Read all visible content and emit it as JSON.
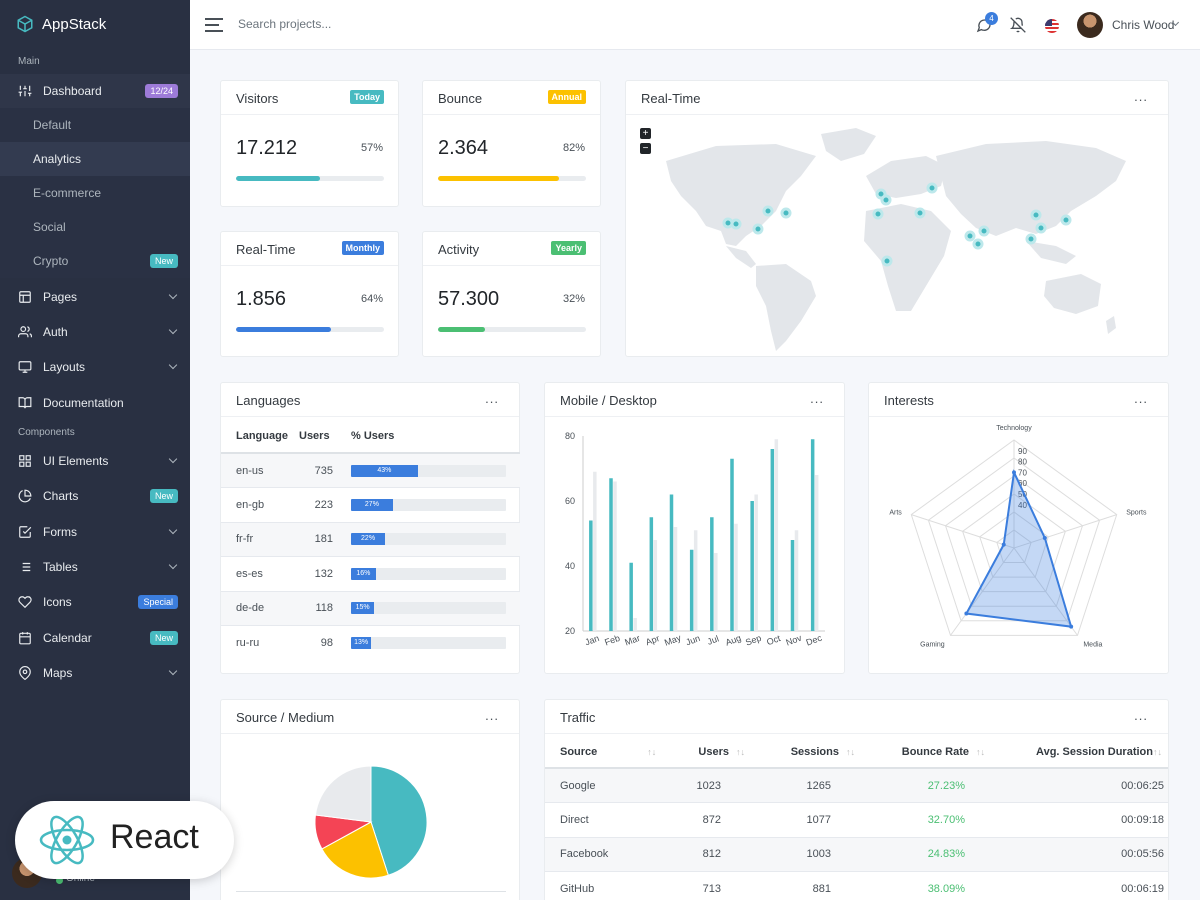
{
  "brand": {
    "name": "AppStack"
  },
  "colors": {
    "primary": "#3b7ddd",
    "info": "#47bac1",
    "warning": "#fcc100",
    "success": "#4bbf73",
    "danger": "#f44455",
    "purple": "#9d7bd8",
    "sidebar": "#293042"
  },
  "sidebar": {
    "header_main": "Main",
    "header_components": "Components",
    "dashboard": {
      "label": "Dashboard",
      "badge": "12/24",
      "icon": "sliders-icon"
    },
    "sub_items": [
      {
        "label": "Default"
      },
      {
        "label": "Analytics"
      },
      {
        "label": "E-commerce"
      },
      {
        "label": "Social"
      },
      {
        "label": "Crypto",
        "badge": "New"
      }
    ],
    "items_main": [
      {
        "label": "Pages",
        "icon": "layout-icon"
      },
      {
        "label": "Auth",
        "icon": "users-icon"
      },
      {
        "label": "Layouts",
        "icon": "monitor-icon"
      },
      {
        "label": "Documentation",
        "icon": "book-icon"
      }
    ],
    "items_components": [
      {
        "label": "UI Elements",
        "icon": "grid-icon"
      },
      {
        "label": "Charts",
        "icon": "pie-chart-icon",
        "badge": "New"
      },
      {
        "label": "Forms",
        "icon": "check-square-icon"
      },
      {
        "label": "Tables",
        "icon": "list-icon"
      },
      {
        "label": "Icons",
        "icon": "heart-icon",
        "badge": "Special"
      },
      {
        "label": "Calendar",
        "icon": "calendar-icon",
        "badge": "New"
      },
      {
        "label": "Maps",
        "icon": "map-pin-icon"
      }
    ],
    "footer": {
      "status": "Online"
    }
  },
  "topbar": {
    "search_placeholder": "Search projects...",
    "notification_count": "4",
    "user_name": "Chris Wood"
  },
  "stats": [
    {
      "title": "Visitors",
      "badge": "Today",
      "value": "17.212",
      "percent": "57%",
      "progress": 57
    },
    {
      "title": "Bounce",
      "badge": "Annual",
      "value": "2.364",
      "percent": "82%",
      "progress": 82
    },
    {
      "title": "Real-Time",
      "badge": "Monthly",
      "value": "1.856",
      "percent": "64%",
      "progress": 64
    },
    {
      "title": "Activity",
      "badge": "Yearly",
      "value": "57.300",
      "percent": "32%",
      "progress": 32
    }
  ],
  "realtime_map": {
    "title": "Real-Time",
    "more": "...",
    "zoom_in": "+",
    "zoom_out": "−"
  },
  "languages": {
    "title": "Languages",
    "more": "...",
    "headers": [
      "Language",
      "Users",
      "% Users"
    ],
    "rows": [
      {
        "lang": "en-us",
        "users": "735",
        "pct": "43%",
        "value": 43
      },
      {
        "lang": "en-gb",
        "users": "223",
        "pct": "27%",
        "value": 27
      },
      {
        "lang": "fr-fr",
        "users": "181",
        "pct": "22%",
        "value": 22
      },
      {
        "lang": "es-es",
        "users": "132",
        "pct": "16%",
        "value": 16
      },
      {
        "lang": "de-de",
        "users": "118",
        "pct": "15%",
        "value": 15
      },
      {
        "lang": "ru-ru",
        "users": "98",
        "pct": "13%",
        "value": 13
      }
    ]
  },
  "mobile_desktop": {
    "title": "Mobile / Desktop",
    "more": "..."
  },
  "interests": {
    "title": "Interests",
    "more": "..."
  },
  "source_medium": {
    "title": "Source / Medium",
    "more": "..."
  },
  "traffic": {
    "title": "Traffic",
    "more": "...",
    "headers": [
      "Source",
      "Users",
      "Sessions",
      "Bounce Rate",
      "Avg. Session Duration"
    ],
    "sort_glyph": "↑↓",
    "rows": [
      {
        "source": "Google",
        "users": "1023",
        "sessions": "1265",
        "bounce": "27.23%",
        "duration": "00:06:25"
      },
      {
        "source": "Direct",
        "users": "872",
        "sessions": "1077",
        "bounce": "32.70%",
        "duration": "00:09:18"
      },
      {
        "source": "Facebook",
        "users": "812",
        "sessions": "1003",
        "bounce": "24.83%",
        "duration": "00:05:56"
      },
      {
        "source": "GitHub",
        "users": "713",
        "sessions": "881",
        "bounce": "38.09%",
        "duration": "00:06:19"
      }
    ]
  },
  "react_badge": {
    "label": "React"
  },
  "chart_data": [
    {
      "type": "bar",
      "categories": [
        "Jan",
        "Feb",
        "Mar",
        "Apr",
        "May",
        "Jun",
        "Jul",
        "Aug",
        "Sep",
        "Oct",
        "Nov",
        "Dec"
      ],
      "series": [
        {
          "values": [
            54,
            67,
            41,
            55,
            62,
            45,
            55,
            73,
            60,
            76,
            48,
            79
          ],
          "color": "#47bac1"
        },
        {
          "values": [
            69,
            66,
            24,
            48,
            52,
            51,
            44,
            53,
            62,
            79,
            51,
            68
          ],
          "color": "#e8eaed"
        }
      ],
      "ylim": [
        20,
        80
      ],
      "yticks": [
        20,
        40,
        60,
        80
      ]
    },
    {
      "type": "radar",
      "axes": [
        "Technology",
        "Sports",
        "Media",
        "Gaming",
        "Arts"
      ],
      "values": [
        70,
        30,
        90,
        75,
        10
      ],
      "range": [
        0,
        100
      ],
      "tick_labels": [
        "40",
        "50",
        "60",
        "70",
        "80",
        "90"
      ],
      "tick_values": [
        40,
        50,
        60,
        70,
        80,
        90
      ],
      "color": "#3b7ddd"
    },
    {
      "type": "pie",
      "slices": [
        {
          "value": 45,
          "color": "#47bac1"
        },
        {
          "value": 22,
          "color": "#fcc100"
        },
        {
          "value": 10,
          "color": "#f44455"
        },
        {
          "value": 23,
          "color": "#e8eaed"
        }
      ]
    }
  ]
}
